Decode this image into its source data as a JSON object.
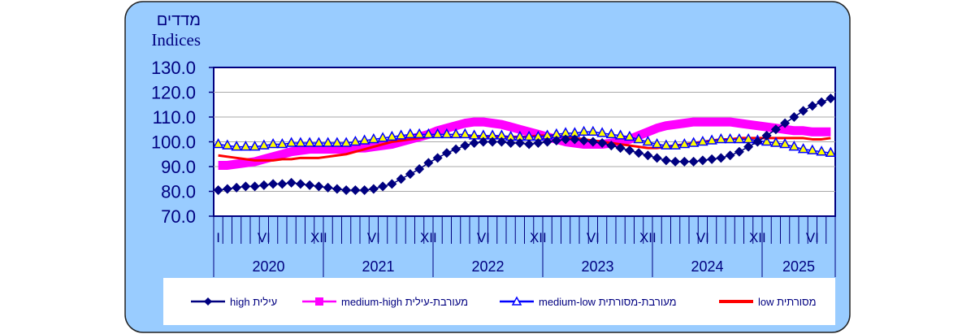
{
  "chart_data": {
    "type": "line",
    "ylabel_he": "מדדים",
    "ylabel": "Indices",
    "ylim": [
      70,
      130
    ],
    "yticks": [
      "130.0",
      "120.0",
      "110.0",
      "100.0",
      "90.0",
      "80.0",
      "70.0"
    ],
    "grid": true,
    "month_labels": [
      "I",
      "VI",
      "XII",
      "VI",
      "XII",
      "VI",
      "XII",
      "VI",
      "XII",
      "VI",
      "XII",
      "VI"
    ],
    "month_label_index": [
      0,
      5,
      11,
      17,
      23,
      29,
      35,
      41,
      47,
      53,
      59,
      65
    ],
    "years": [
      "2020",
      "2021",
      "2022",
      "2023",
      "2024",
      "2025"
    ],
    "x_start": "2020-01",
    "legend_position": "bottom",
    "series": [
      {
        "name": "עילית high",
        "color": "#000080",
        "marker": "diamond",
        "values": [
          80.5,
          81,
          81.5,
          82,
          82,
          82.5,
          83,
          83,
          83.5,
          83,
          82.5,
          82,
          81.5,
          81,
          80.5,
          80.5,
          80.5,
          81,
          82,
          83,
          85,
          87,
          89,
          91.5,
          93.5,
          95.5,
          97,
          98.5,
          99.5,
          100,
          100,
          100,
          99.5,
          99.5,
          99,
          99.5,
          100,
          100.5,
          101,
          101,
          100.5,
          100,
          99.5,
          98.5,
          97.5,
          96.5,
          95.5,
          94.5,
          93.5,
          92.5,
          92,
          92,
          92,
          92.5,
          93,
          93.5,
          94.5,
          96,
          98,
          100,
          102.5,
          105,
          107.5,
          110,
          112.5,
          114.5,
          116,
          117.5
        ]
      },
      {
        "name": "מעורבת-עילית medium-high",
        "color": "#FF00FF",
        "marker": "square",
        "values": [
          90.5,
          90.5,
          91,
          91.5,
          92,
          93,
          94,
          95,
          96,
          96.5,
          97,
          97,
          97,
          97,
          97,
          97.5,
          97.5,
          98,
          98.5,
          99,
          100,
          101,
          102,
          103,
          104.5,
          105.5,
          106.5,
          107.5,
          108,
          108,
          107.5,
          107,
          106,
          105,
          104,
          103,
          102,
          101,
          100,
          99.5,
          99,
          99,
          99,
          99.5,
          100,
          101,
          102.5,
          104,
          105.5,
          106.5,
          107,
          107.5,
          108,
          108,
          108,
          108,
          108,
          107.5,
          107,
          106.5,
          106,
          105.5,
          105,
          104.5,
          104.5,
          104,
          104,
          104
        ]
      },
      {
        "name": "מעורבת-מסורתית medium-low",
        "color": "#0000FF",
        "marker": "triangle",
        "values": [
          99,
          98.5,
          98,
          98,
          98,
          98.5,
          99,
          99,
          99.5,
          99.5,
          99.5,
          99.5,
          99.5,
          99.5,
          99.5,
          100,
          100.5,
          101,
          101.5,
          102,
          102.5,
          103,
          103,
          103,
          103,
          103,
          103,
          103,
          102.5,
          102.5,
          102.5,
          102.5,
          102,
          102,
          102,
          102,
          102.5,
          103,
          103.5,
          103.5,
          104,
          104,
          103.5,
          103,
          102.5,
          102,
          101,
          100,
          99,
          98.5,
          98.5,
          99,
          99.5,
          100,
          100.5,
          101,
          101,
          101,
          101,
          100.5,
          100,
          99.5,
          99,
          98,
          97,
          96.5,
          96,
          95.5
        ]
      },
      {
        "name": "מסורתית low",
        "color": "#FF0000",
        "marker": "none",
        "values": [
          94.5,
          94,
          93.5,
          93,
          92.5,
          92.5,
          92.5,
          93,
          93,
          93.5,
          93.5,
          93.5,
          94,
          94.5,
          95,
          96,
          97,
          98,
          99,
          100,
          100.5,
          101,
          101.5,
          102,
          102,
          102,
          102,
          102,
          102,
          102,
          102,
          102,
          102,
          102,
          102,
          102.5,
          102.5,
          102.5,
          102,
          101.5,
          101,
          100.5,
          100,
          99.5,
          99,
          98.5,
          98,
          97.5,
          97.5,
          98,
          98.5,
          99,
          99.5,
          100,
          100.5,
          101,
          101,
          101.5,
          101.5,
          101.5,
          101.5,
          101.5,
          101.5,
          101.5,
          101.5,
          101,
          101,
          101.5
        ]
      }
    ],
    "legend": [
      {
        "label": "high",
        "label_he": "עילית"
      },
      {
        "label": "medium-high",
        "label_he": "מעורבת-עילית"
      },
      {
        "label": "medium-low",
        "label_he": "מעורבת-מסורתית"
      },
      {
        "label": "low",
        "label_he": "מסורתית"
      }
    ]
  }
}
